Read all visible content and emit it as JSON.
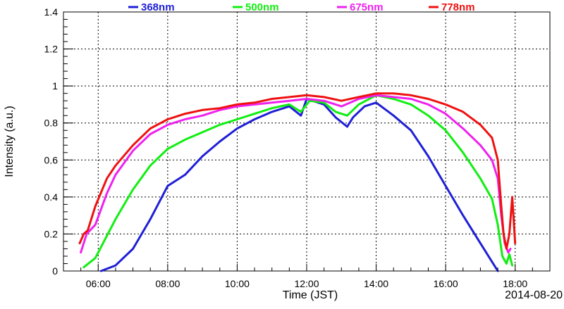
{
  "chart_data": {
    "type": "line",
    "xlabel": "Time (JST)",
    "ylabel": "Intensity (a.u.)",
    "date_label": "2014-08-20",
    "xlim": [
      "05:00",
      "19:00"
    ],
    "ylim": [
      0,
      1.4
    ],
    "x_ticks": [
      "06:00",
      "08:00",
      "10:00",
      "12:00",
      "14:00",
      "16:00",
      "18:00"
    ],
    "y_ticks": [
      "0",
      "0.2",
      "0.4",
      "0.6",
      "0.8",
      "1",
      "1.2",
      "1.4"
    ],
    "grid": true,
    "legend_position": "top",
    "series": [
      {
        "name": "368nm",
        "color": "#1f1fd6",
        "points": [
          [
            "06:05",
            0.0
          ],
          [
            "06:30",
            0.03
          ],
          [
            "07:00",
            0.12
          ],
          [
            "07:30",
            0.28
          ],
          [
            "08:00",
            0.46
          ],
          [
            "08:30",
            0.52
          ],
          [
            "09:00",
            0.62
          ],
          [
            "09:30",
            0.7
          ],
          [
            "10:00",
            0.77
          ],
          [
            "10:30",
            0.82
          ],
          [
            "11:00",
            0.86
          ],
          [
            "11:30",
            0.89
          ],
          [
            "11:50",
            0.84
          ],
          [
            "12:00",
            0.93
          ],
          [
            "12:30",
            0.9
          ],
          [
            "12:50",
            0.83
          ],
          [
            "13:10",
            0.78
          ],
          [
            "13:20",
            0.83
          ],
          [
            "13:40",
            0.89
          ],
          [
            "14:00",
            0.91
          ],
          [
            "14:30",
            0.84
          ],
          [
            "15:00",
            0.76
          ],
          [
            "15:30",
            0.62
          ],
          [
            "16:00",
            0.46
          ],
          [
            "16:30",
            0.3
          ],
          [
            "17:00",
            0.15
          ],
          [
            "17:20",
            0.05
          ],
          [
            "17:30",
            0.0
          ]
        ]
      },
      {
        "name": "500nm",
        "color": "#11ee11",
        "points": [
          [
            "05:35",
            0.02
          ],
          [
            "05:55",
            0.07
          ],
          [
            "06:15",
            0.19
          ],
          [
            "06:30",
            0.28
          ],
          [
            "07:00",
            0.44
          ],
          [
            "07:30",
            0.57
          ],
          [
            "08:00",
            0.66
          ],
          [
            "08:30",
            0.71
          ],
          [
            "09:00",
            0.75
          ],
          [
            "09:30",
            0.79
          ],
          [
            "10:00",
            0.82
          ],
          [
            "10:30",
            0.85
          ],
          [
            "11:00",
            0.88
          ],
          [
            "11:30",
            0.9
          ],
          [
            "11:50",
            0.86
          ],
          [
            "12:05",
            0.92
          ],
          [
            "12:30",
            0.91
          ],
          [
            "12:50",
            0.86
          ],
          [
            "13:10",
            0.84
          ],
          [
            "13:30",
            0.9
          ],
          [
            "14:00",
            0.95
          ],
          [
            "14:30",
            0.93
          ],
          [
            "15:00",
            0.9
          ],
          [
            "15:30",
            0.84
          ],
          [
            "16:00",
            0.76
          ],
          [
            "16:30",
            0.64
          ],
          [
            "17:00",
            0.5
          ],
          [
            "17:20",
            0.39
          ],
          [
            "17:30",
            0.25
          ],
          [
            "17:38",
            0.08
          ],
          [
            "17:45",
            0.04
          ],
          [
            "17:50",
            0.09
          ],
          [
            "17:55",
            0.03
          ]
        ]
      },
      {
        "name": "675nm",
        "color": "#ee22ee",
        "points": [
          [
            "05:30",
            0.1
          ],
          [
            "05:40",
            0.2
          ],
          [
            "05:55",
            0.25
          ],
          [
            "06:15",
            0.42
          ],
          [
            "06:30",
            0.52
          ],
          [
            "07:00",
            0.65
          ],
          [
            "07:30",
            0.74
          ],
          [
            "08:00",
            0.79
          ],
          [
            "08:30",
            0.82
          ],
          [
            "09:00",
            0.84
          ],
          [
            "09:30",
            0.87
          ],
          [
            "10:00",
            0.89
          ],
          [
            "10:30",
            0.9
          ],
          [
            "11:00",
            0.91
          ],
          [
            "11:30",
            0.92
          ],
          [
            "12:00",
            0.93
          ],
          [
            "12:30",
            0.92
          ],
          [
            "13:00",
            0.89
          ],
          [
            "13:30",
            0.93
          ],
          [
            "14:00",
            0.95
          ],
          [
            "14:30",
            0.94
          ],
          [
            "15:00",
            0.93
          ],
          [
            "15:30",
            0.9
          ],
          [
            "16:00",
            0.85
          ],
          [
            "16:30",
            0.77
          ],
          [
            "17:00",
            0.68
          ],
          [
            "17:20",
            0.6
          ],
          [
            "17:30",
            0.5
          ],
          [
            "17:36",
            0.3
          ],
          [
            "17:42",
            0.15
          ],
          [
            "17:48",
            0.1
          ],
          [
            "17:52",
            0.12
          ]
        ]
      },
      {
        "name": "778nm",
        "color": "#ee1111",
        "points": [
          [
            "05:28",
            0.15
          ],
          [
            "05:35",
            0.2
          ],
          [
            "05:42",
            0.22
          ],
          [
            "05:55",
            0.35
          ],
          [
            "06:15",
            0.5
          ],
          [
            "06:30",
            0.57
          ],
          [
            "07:00",
            0.68
          ],
          [
            "07:30",
            0.77
          ],
          [
            "08:00",
            0.82
          ],
          [
            "08:30",
            0.85
          ],
          [
            "09:00",
            0.87
          ],
          [
            "09:30",
            0.88
          ],
          [
            "10:00",
            0.9
          ],
          [
            "10:30",
            0.91
          ],
          [
            "11:00",
            0.93
          ],
          [
            "11:30",
            0.94
          ],
          [
            "12:00",
            0.95
          ],
          [
            "12:30",
            0.94
          ],
          [
            "13:00",
            0.92
          ],
          [
            "13:30",
            0.94
          ],
          [
            "14:00",
            0.96
          ],
          [
            "14:30",
            0.96
          ],
          [
            "15:00",
            0.95
          ],
          [
            "15:30",
            0.93
          ],
          [
            "16:00",
            0.9
          ],
          [
            "16:30",
            0.86
          ],
          [
            "17:00",
            0.79
          ],
          [
            "17:20",
            0.72
          ],
          [
            "17:30",
            0.6
          ],
          [
            "17:36",
            0.35
          ],
          [
            "17:40",
            0.2
          ],
          [
            "17:45",
            0.12
          ],
          [
            "17:50",
            0.2
          ],
          [
            "17:55",
            0.4
          ],
          [
            "18:00",
            0.15
          ]
        ]
      }
    ]
  }
}
